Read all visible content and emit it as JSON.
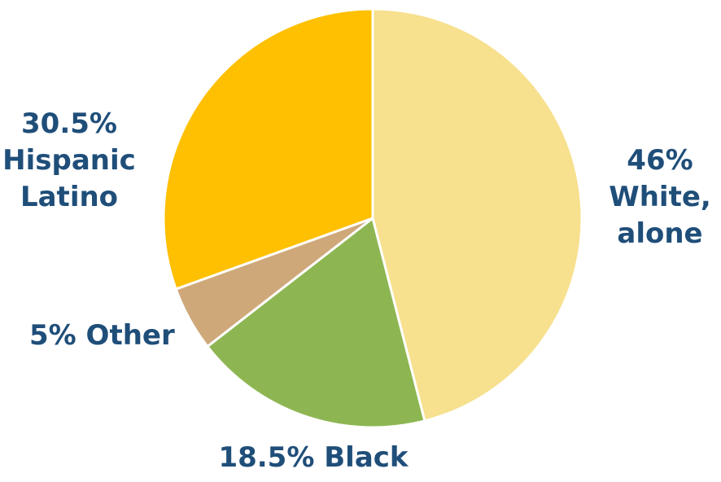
{
  "chart_data": {
    "type": "pie",
    "title": "",
    "slices": [
      {
        "label": "White, alone",
        "value": 46,
        "color": "#F7E08E"
      },
      {
        "label": "Black",
        "value": 18.5,
        "color": "#8DB652"
      },
      {
        "label": "Other",
        "value": 5,
        "color": "#CFA87A"
      },
      {
        "label": "Hispanic Latino",
        "value": 30.5,
        "color": "#FEC001"
      }
    ],
    "labels": {
      "white": {
        "line1": "46%",
        "line2": "White,",
        "line3": "alone"
      },
      "hispanic": {
        "line1": "30.5%",
        "line2": "Hispanic",
        "line3": "Latino"
      },
      "other": {
        "line1": "5% Other"
      },
      "black": {
        "line1": "18.5% Black"
      }
    },
    "label_color": "#1F4E79",
    "legend": "none"
  }
}
